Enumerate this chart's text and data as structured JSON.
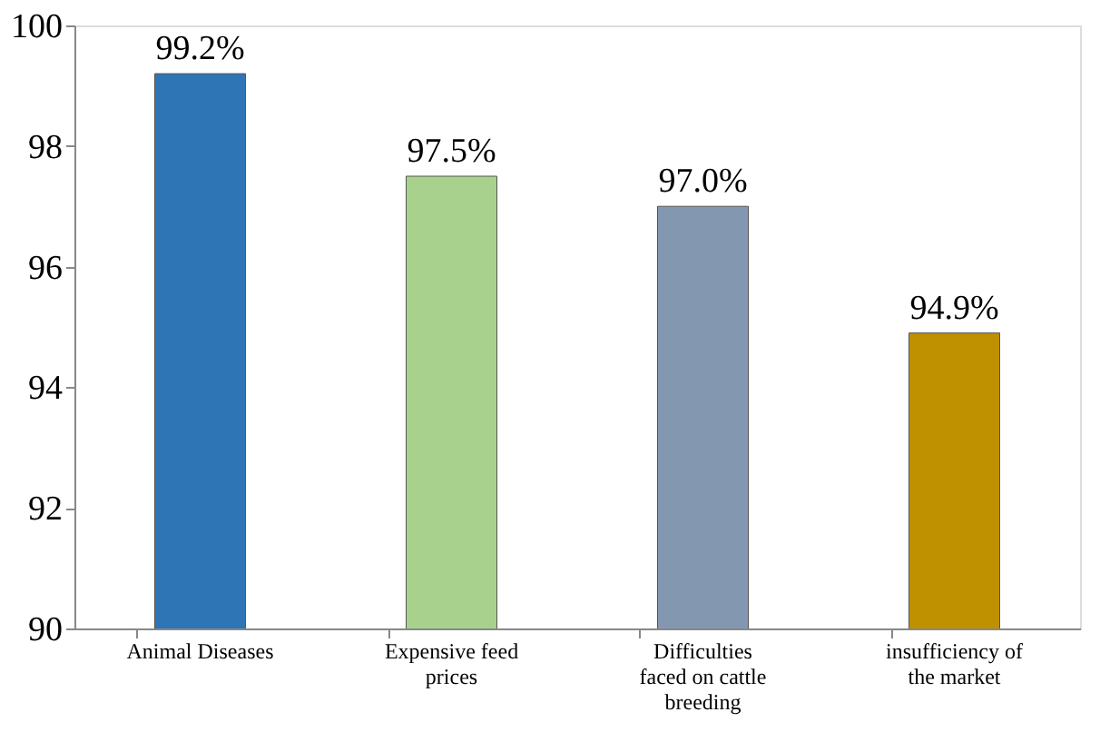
{
  "chart_data": {
    "type": "bar",
    "categories": [
      "Animal Diseases",
      "Expensive feed prices",
      "Difficulties faced on cattle breeding",
      "insufficiency of the market"
    ],
    "values": [
      99.2,
      97.5,
      97.0,
      94.9
    ],
    "colors": [
      "#2e75b6",
      "#a9d18e",
      "#8497b0",
      "#bf9000"
    ],
    "value_labels": [
      "99.2%",
      "97.5%",
      "97.0%",
      "94.9%"
    ],
    "ylim": [
      90,
      100
    ],
    "yticks": [
      90,
      92,
      94,
      96,
      98,
      100
    ],
    "grid": false
  }
}
